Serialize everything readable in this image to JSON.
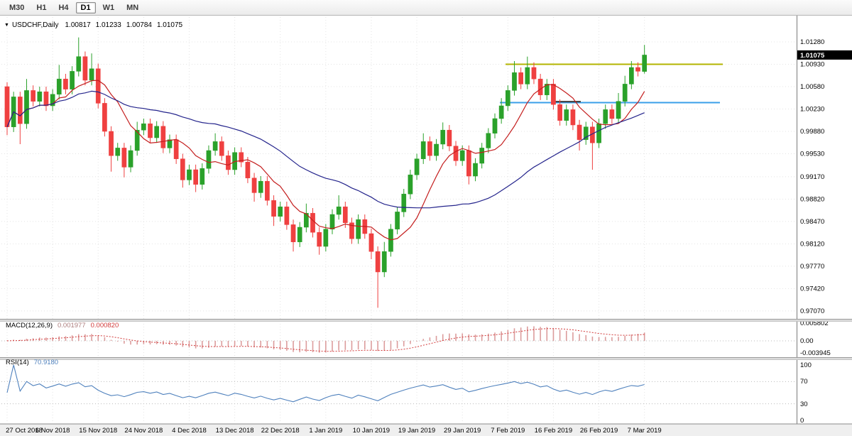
{
  "icons": {
    "collapse_arrow": "▼"
  },
  "toolbar": {
    "timeframes": [
      {
        "label": "M30",
        "selected": false
      },
      {
        "label": "H1",
        "selected": false
      },
      {
        "label": "H4",
        "selected": false
      },
      {
        "label": "D1",
        "selected": true
      },
      {
        "label": "W1",
        "selected": false
      },
      {
        "label": "MN",
        "selected": false
      }
    ]
  },
  "quote": {
    "symbol": "USDCHF,Daily",
    "open": "1.00817",
    "high": "1.01233",
    "low": "1.00784",
    "close": "1.01075"
  },
  "price_axis": {
    "labels": [
      "1.01280",
      "1.00930",
      "1.00580",
      "1.00230",
      "0.99880",
      "0.99530",
      "0.99170",
      "0.98820",
      "0.98470",
      "0.98120",
      "0.97770",
      "0.97420",
      "0.97070"
    ],
    "current": "1.01075"
  },
  "time_axis": {
    "ticks": [
      {
        "label": "27 Oct 2018",
        "index": 0
      },
      {
        "label": "6 Nov 2018",
        "index": 7
      },
      {
        "label": "15 Nov 2018",
        "index": 14
      },
      {
        "label": "24 Nov 2018",
        "index": 21
      },
      {
        "label": "4 Dec 2018",
        "index": 28
      },
      {
        "label": "13 Dec 2018",
        "index": 35
      },
      {
        "label": "22 Dec 2018",
        "index": 42
      },
      {
        "label": "1 Jan 2019",
        "index": 49
      },
      {
        "label": "10 Jan 2019",
        "index": 56
      },
      {
        "label": "19 Jan 2019",
        "index": 63
      },
      {
        "label": "29 Jan 2019",
        "index": 70
      },
      {
        "label": "7 Feb 2019",
        "index": 77
      },
      {
        "label": "16 Feb 2019",
        "index": 84
      },
      {
        "label": "26 Feb 2019",
        "index": 91
      },
      {
        "label": "7 Mar 2019",
        "index": 98
      }
    ]
  },
  "indicators": {
    "macd": {
      "name": "MACD(12,26,9)",
      "value": "0.001977",
      "signal_value": "0.000820",
      "axis_labels": [
        "0.005802",
        "0.00",
        "-0.003945"
      ],
      "params": {
        "fast": 12,
        "slow": 26,
        "signal": 9
      }
    },
    "rsi": {
      "name": "RSI(14)",
      "value": "70.9180",
      "axis_labels": [
        "100",
        "70",
        "30",
        "0"
      ],
      "levels": [
        70,
        30
      ],
      "period": 14
    }
  },
  "overlays": {
    "moving_averages": [
      {
        "type": "sma",
        "period": 8,
        "color": "#c41e1e"
      },
      {
        "type": "sma",
        "period": 32,
        "color": "#24248c"
      }
    ],
    "horizontal_lines": [
      {
        "color": "#b3b400",
        "price": 1.0093,
        "x1": 712,
        "x2": 1018
      },
      {
        "color": "#3a9fe8",
        "price": 1.0033,
        "x1": 704,
        "x2": 1014
      },
      {
        "color": "#3c3c3c",
        "price": 1.00345,
        "x1": 782,
        "x2": 818
      }
    ]
  },
  "colors": {
    "bull": "#2aa12a",
    "bear": "#ef4040",
    "macd_hist": "#dc9c9c",
    "macd_signal": "#d23b3b",
    "rsi_line": "#4f81bd",
    "grid": "#e4e4e4",
    "price_box_bg": "#000000",
    "price_box_text": "#ffffff"
  },
  "chart_data": {
    "type": "candlestick",
    "symbol": "USDCHF",
    "timeframe": "Daily",
    "y_range": [
      0.9707,
      1.0135
    ],
    "x_tick_labels": [
      "27 Oct 2018",
      "6 Nov 2018",
      "15 Nov 2018",
      "24 Nov 2018",
      "4 Dec 2018",
      "13 Dec 2018",
      "22 Dec 2018",
      "1 Jan 2019",
      "10 Jan 2019",
      "19 Jan 2019",
      "29 Jan 2019",
      "7 Feb 2019",
      "16 Feb 2019",
      "26 Feb 2019",
      "7 Mar 2019"
    ],
    "ohlc": [
      [
        1.0058,
        1.0065,
        0.9982,
        0.9995
      ],
      [
        0.9995,
        1.005,
        0.9987,
        1.0042
      ],
      [
        1.0042,
        1.005,
        0.9968,
        1.0
      ],
      [
        1.0,
        1.007,
        0.9992,
        1.0052
      ],
      [
        1.0052,
        1.006,
        1.0027,
        1.0035
      ],
      [
        1.0035,
        1.0058,
        1.0027,
        1.005
      ],
      [
        1.005,
        1.0058,
        1.002,
        1.0028
      ],
      [
        1.0028,
        1.0054,
        1.002,
        1.0046
      ],
      [
        1.0046,
        1.0092,
        1.0038,
        1.007
      ],
      [
        1.007,
        1.0078,
        1.0046,
        1.0054
      ],
      [
        1.0054,
        1.009,
        1.0046,
        1.0082
      ],
      [
        1.0082,
        1.0135,
        1.0074,
        1.0105
      ],
      [
        1.0105,
        1.0113,
        1.006,
        1.0068
      ],
      [
        1.0068,
        1.011,
        1.006,
        1.0086
      ],
      [
        1.0086,
        1.0094,
        1.0024,
        1.0032
      ],
      [
        1.0032,
        1.004,
        0.998,
        0.9988
      ],
      [
        0.9988,
        0.9996,
        0.9925,
        0.995
      ],
      [
        0.995,
        0.997,
        0.9942,
        0.9962
      ],
      [
        0.9962,
        0.997,
        0.9916,
        0.9932
      ],
      [
        0.9932,
        0.9966,
        0.9924,
        0.9958
      ],
      [
        0.9958,
        1.0003,
        0.995,
        0.999
      ],
      [
        0.999,
        1.0008,
        0.9982,
        1.0
      ],
      [
        1.0,
        1.0008,
        0.997,
        0.9978
      ],
      [
        0.9978,
        1.0004,
        0.997,
        0.9996
      ],
      [
        0.9996,
        1.0004,
        0.9954,
        0.9962
      ],
      [
        0.9962,
        0.9983,
        0.9954,
        0.9975
      ],
      [
        0.9975,
        0.9983,
        0.9937,
        0.9945
      ],
      [
        0.9945,
        0.9953,
        0.99,
        0.9912
      ],
      [
        0.9912,
        0.9936,
        0.9904,
        0.9928
      ],
      [
        0.9928,
        0.9936,
        0.9893,
        0.9905
      ],
      [
        0.9905,
        0.9938,
        0.9897,
        0.993
      ],
      [
        0.993,
        0.9966,
        0.9922,
        0.9958
      ],
      [
        0.9958,
        0.9985,
        0.995,
        0.9972
      ],
      [
        0.9972,
        0.998,
        0.9942,
        0.995
      ],
      [
        0.995,
        0.9958,
        0.992,
        0.9928
      ],
      [
        0.9928,
        0.9963,
        0.992,
        0.9955
      ],
      [
        0.9955,
        0.9963,
        0.9932,
        0.994
      ],
      [
        0.994,
        0.9948,
        0.9907,
        0.9915
      ],
      [
        0.9915,
        0.9923,
        0.9878,
        0.9892
      ],
      [
        0.9892,
        0.9918,
        0.9884,
        0.991
      ],
      [
        0.991,
        0.9918,
        0.9872,
        0.988
      ],
      [
        0.988,
        0.9888,
        0.984,
        0.9855
      ],
      [
        0.9855,
        0.9878,
        0.9847,
        0.987
      ],
      [
        0.987,
        0.9878,
        0.9834,
        0.9842
      ],
      [
        0.9842,
        0.985,
        0.98,
        0.9815
      ],
      [
        0.9815,
        0.9846,
        0.9807,
        0.9838
      ],
      [
        0.9838,
        0.9875,
        0.983,
        0.986
      ],
      [
        0.986,
        0.9868,
        0.9822,
        0.983
      ],
      [
        0.983,
        0.9838,
        0.9795,
        0.9808
      ],
      [
        0.9808,
        0.9843,
        0.98,
        0.9835
      ],
      [
        0.9835,
        0.9866,
        0.9827,
        0.9858
      ],
      [
        0.9858,
        0.9888,
        0.985,
        0.987
      ],
      [
        0.987,
        0.9878,
        0.9837,
        0.9845
      ],
      [
        0.9845,
        0.9853,
        0.9812,
        0.982
      ],
      [
        0.982,
        0.9858,
        0.9812,
        0.985
      ],
      [
        0.985,
        0.9858,
        0.982,
        0.9828
      ],
      [
        0.9828,
        0.9836,
        0.9788,
        0.98
      ],
      [
        0.98,
        0.9808,
        0.9712,
        0.9768
      ],
      [
        0.9768,
        0.9815,
        0.976,
        0.98
      ],
      [
        0.98,
        0.9843,
        0.9792,
        0.9835
      ],
      [
        0.9835,
        0.987,
        0.9827,
        0.9862
      ],
      [
        0.9862,
        0.9898,
        0.9854,
        0.989
      ],
      [
        0.989,
        0.9928,
        0.9882,
        0.992
      ],
      [
        0.992,
        0.9953,
        0.9912,
        0.9945
      ],
      [
        0.9945,
        0.9985,
        0.9937,
        0.9972
      ],
      [
        0.9972,
        0.998,
        0.9942,
        0.995
      ],
      [
        0.995,
        0.9976,
        0.9942,
        0.9968
      ],
      [
        0.9968,
        1.0002,
        0.996,
        0.999
      ],
      [
        0.999,
        0.9998,
        0.9957,
        0.9965
      ],
      [
        0.9965,
        0.9973,
        0.9934,
        0.9942
      ],
      [
        0.9942,
        0.9966,
        0.9934,
        0.9958
      ],
      [
        0.9958,
        0.9966,
        0.9905,
        0.9918
      ],
      [
        0.9918,
        0.9946,
        0.991,
        0.9938
      ],
      [
        0.9938,
        0.997,
        0.993,
        0.9962
      ],
      [
        0.9962,
        0.9993,
        0.9954,
        0.9985
      ],
      [
        0.9985,
        1.0016,
        0.9977,
        1.0008
      ],
      [
        1.0008,
        1.004,
        1.0,
        1.0028
      ],
      [
        1.0028,
        1.006,
        1.002,
        1.0052
      ],
      [
        1.0052,
        1.0098,
        1.0044,
        1.008
      ],
      [
        1.008,
        1.0088,
        1.0054,
        1.0062
      ],
      [
        1.0062,
        1.0105,
        1.0054,
        1.0088
      ],
      [
        1.0088,
        1.0096,
        1.0062,
        1.007
      ],
      [
        1.007,
        1.0078,
        1.0037,
        1.0045
      ],
      [
        1.0045,
        1.007,
        1.0037,
        1.0062
      ],
      [
        1.0062,
        1.007,
        1.0022,
        1.003
      ],
      [
        1.003,
        1.0038,
        0.9997,
        1.0005
      ],
      [
        1.0005,
        1.003,
        0.9997,
        1.0022
      ],
      [
        1.0022,
        1.003,
        0.999,
        0.9998
      ],
      [
        0.9998,
        1.0006,
        0.9958,
        0.9975
      ],
      [
        0.9975,
        1.0003,
        0.9967,
        0.9995
      ],
      [
        0.9995,
        1.0003,
        0.9928,
        0.997
      ],
      [
        0.997,
        1.0008,
        0.9962,
        1.0
      ],
      [
        1.0,
        1.003,
        0.9992,
        1.0022
      ],
      [
        1.0022,
        1.003,
        1.0,
        1.0008
      ],
      [
        1.0008,
        1.0048,
        1.0,
        1.0035
      ],
      [
        1.0035,
        1.0075,
        1.0027,
        1.0062
      ],
      [
        1.0062,
        1.0098,
        1.0054,
        1.0088
      ],
      [
        1.0088,
        1.0096,
        1.0074,
        1.0082
      ],
      [
        1.00817,
        1.01233,
        1.00784,
        1.01075
      ]
    ]
  }
}
